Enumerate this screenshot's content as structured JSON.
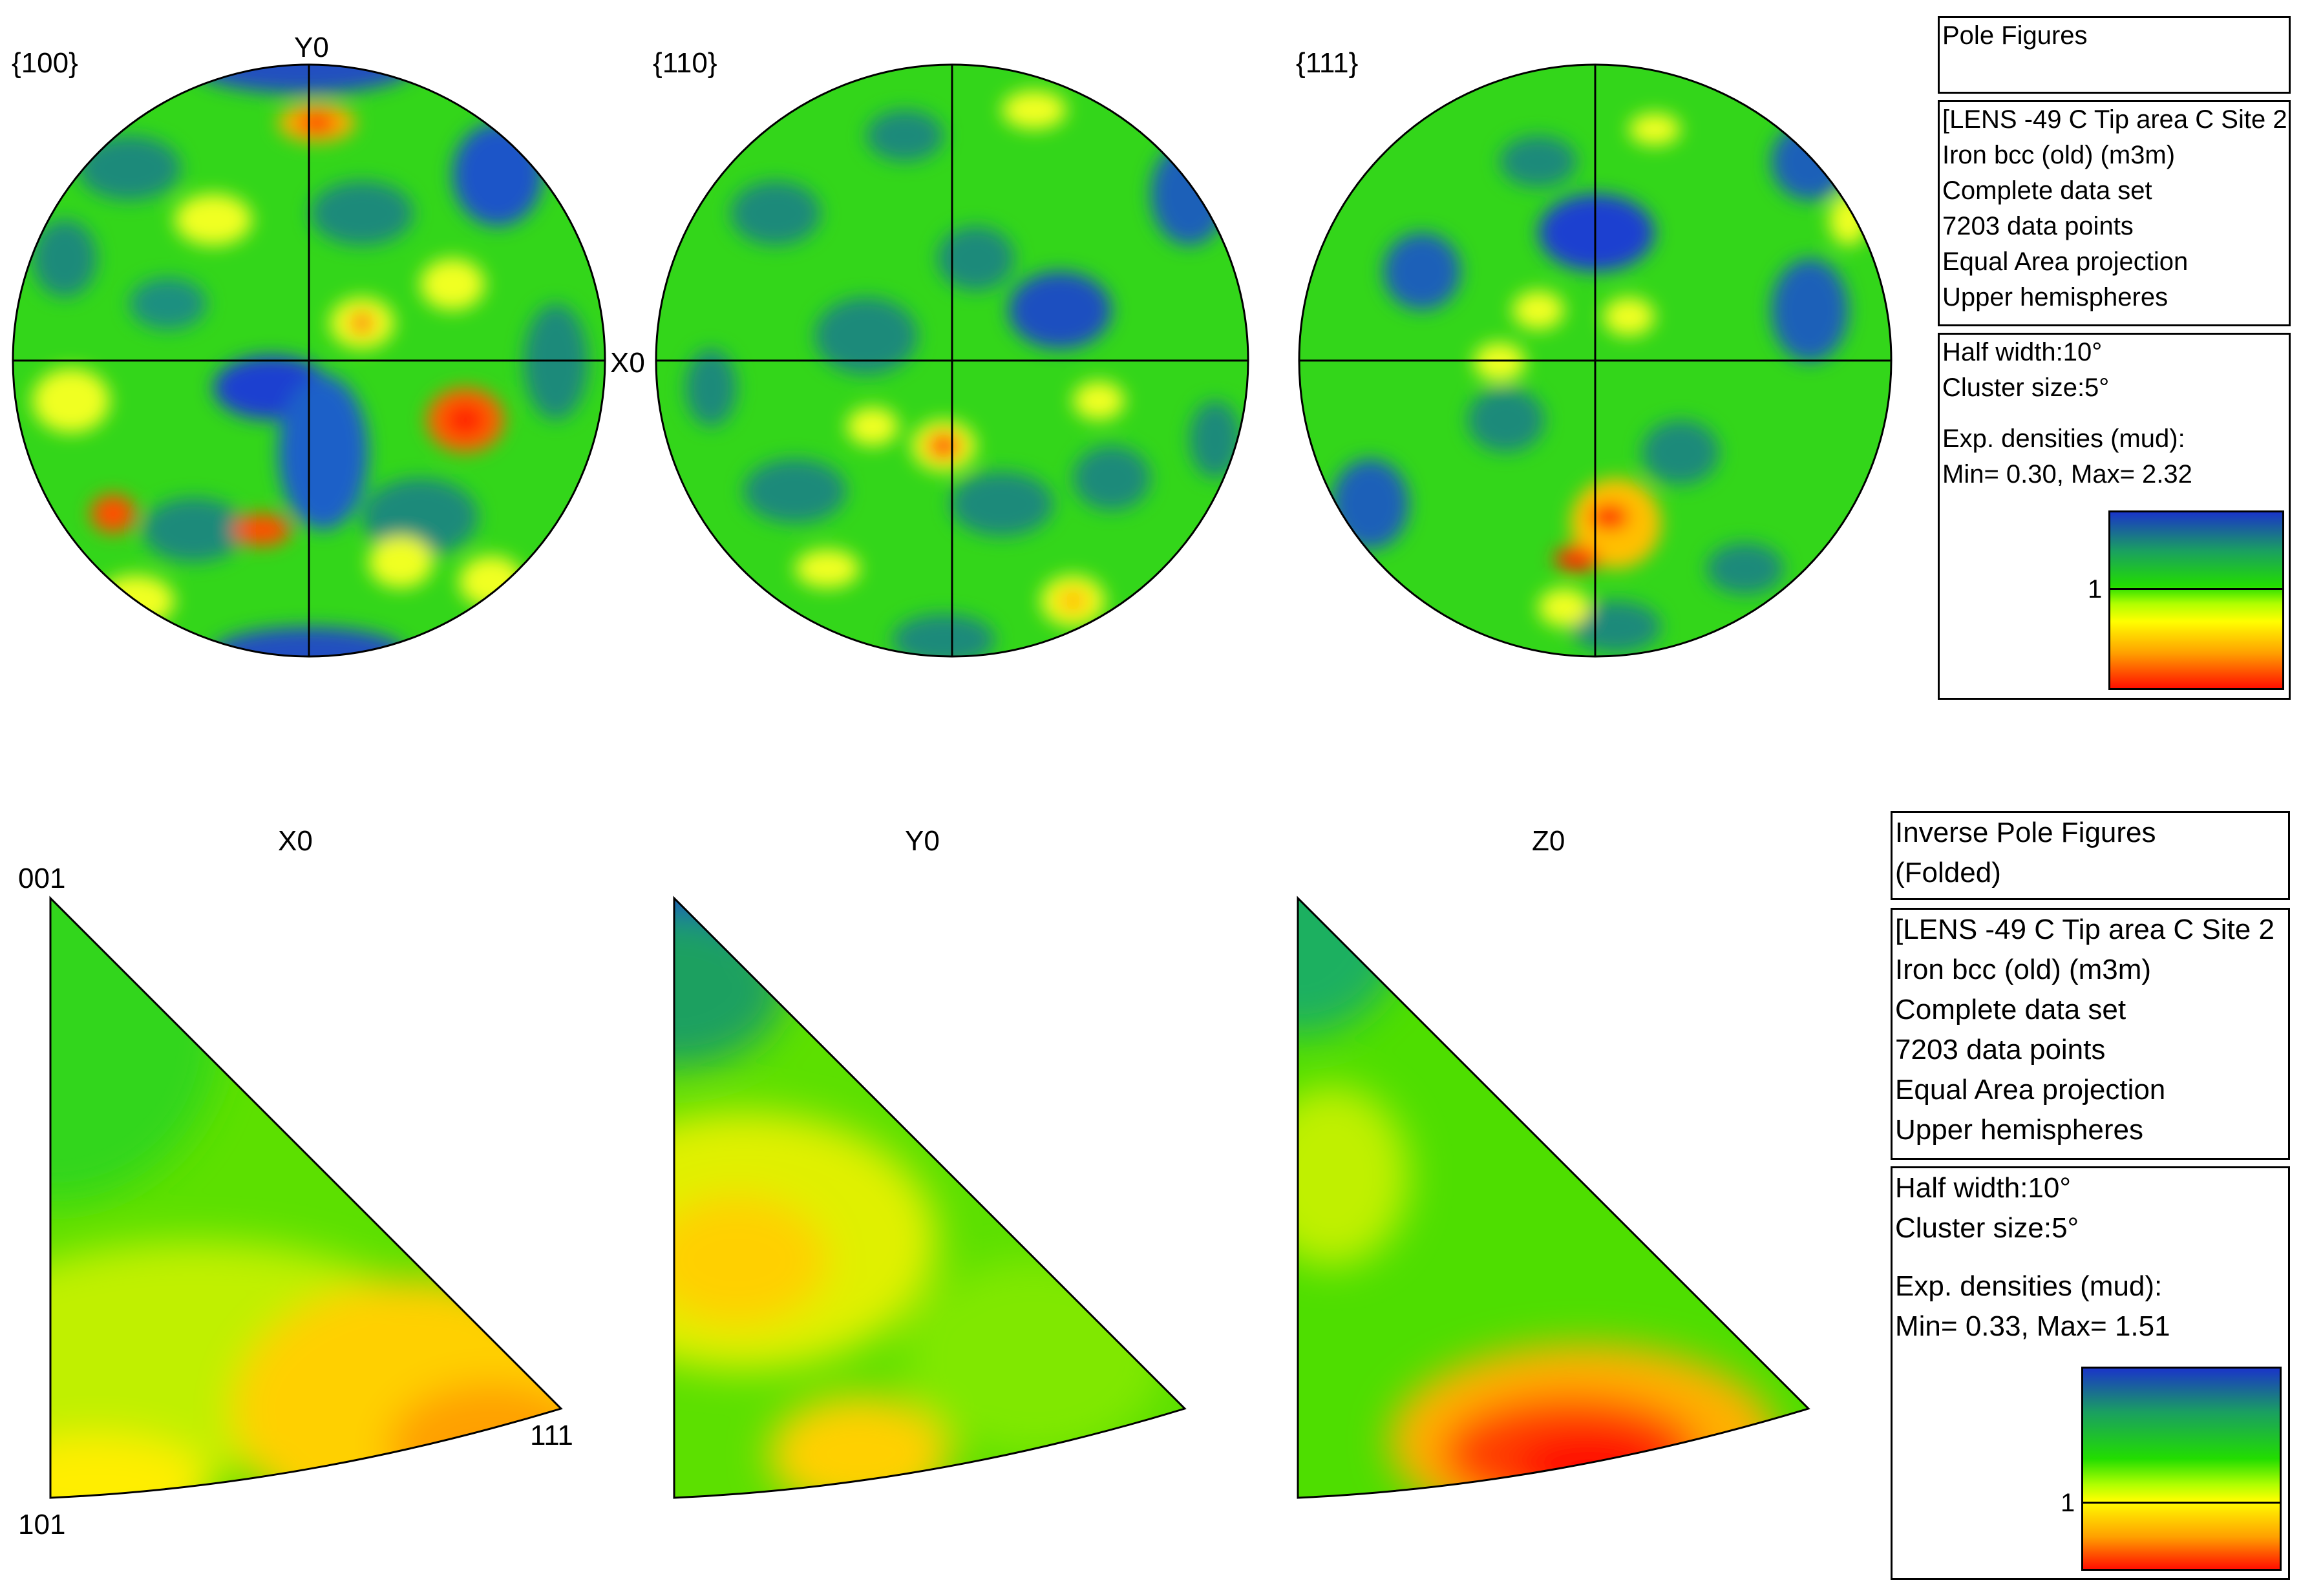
{
  "pole_figures": {
    "labels": [
      "{100}",
      "{110}",
      "{111}"
    ],
    "axis_y": "Y0",
    "axis_x": "X0",
    "title_box": "Pole Figures",
    "info": [
      "[LENS -49 C Tip area C Site 2",
      "Iron bcc (old) (m3m)",
      "Complete data set",
      "7203 data points",
      "Equal Area projection",
      "Upper hemispheres"
    ],
    "params": [
      "Half width:10°",
      "Cluster size:5°",
      "Exp. densities (mud):",
      "Min= 0.30, Max= 2.32"
    ],
    "scale_mark": "1",
    "min": 0.3,
    "max": 2.32
  },
  "inverse_pole_figures": {
    "labels": [
      "X0",
      "Y0",
      "Z0"
    ],
    "corners": {
      "c001": "001",
      "c101": "101",
      "c111": "111"
    },
    "title_box": [
      "Inverse Pole Figures",
      "(Folded)"
    ],
    "info": [
      "[LENS -49 C Tip area C Site 2",
      "Iron bcc (old) (m3m)",
      "Complete data set",
      "7203 data points",
      "Equal Area projection",
      "Upper hemispheres"
    ],
    "params": [
      "Half width:10°",
      "Cluster size:5°",
      "Exp. densities (mud):",
      "Min= 0.33, Max= 1.51"
    ],
    "scale_mark": "1",
    "min": 0.33,
    "max": 1.51
  },
  "colors": {
    "low": "#1a35c8",
    "mid": "#22dd00",
    "high": "#ff0000",
    "yellow": "#ffff00"
  }
}
